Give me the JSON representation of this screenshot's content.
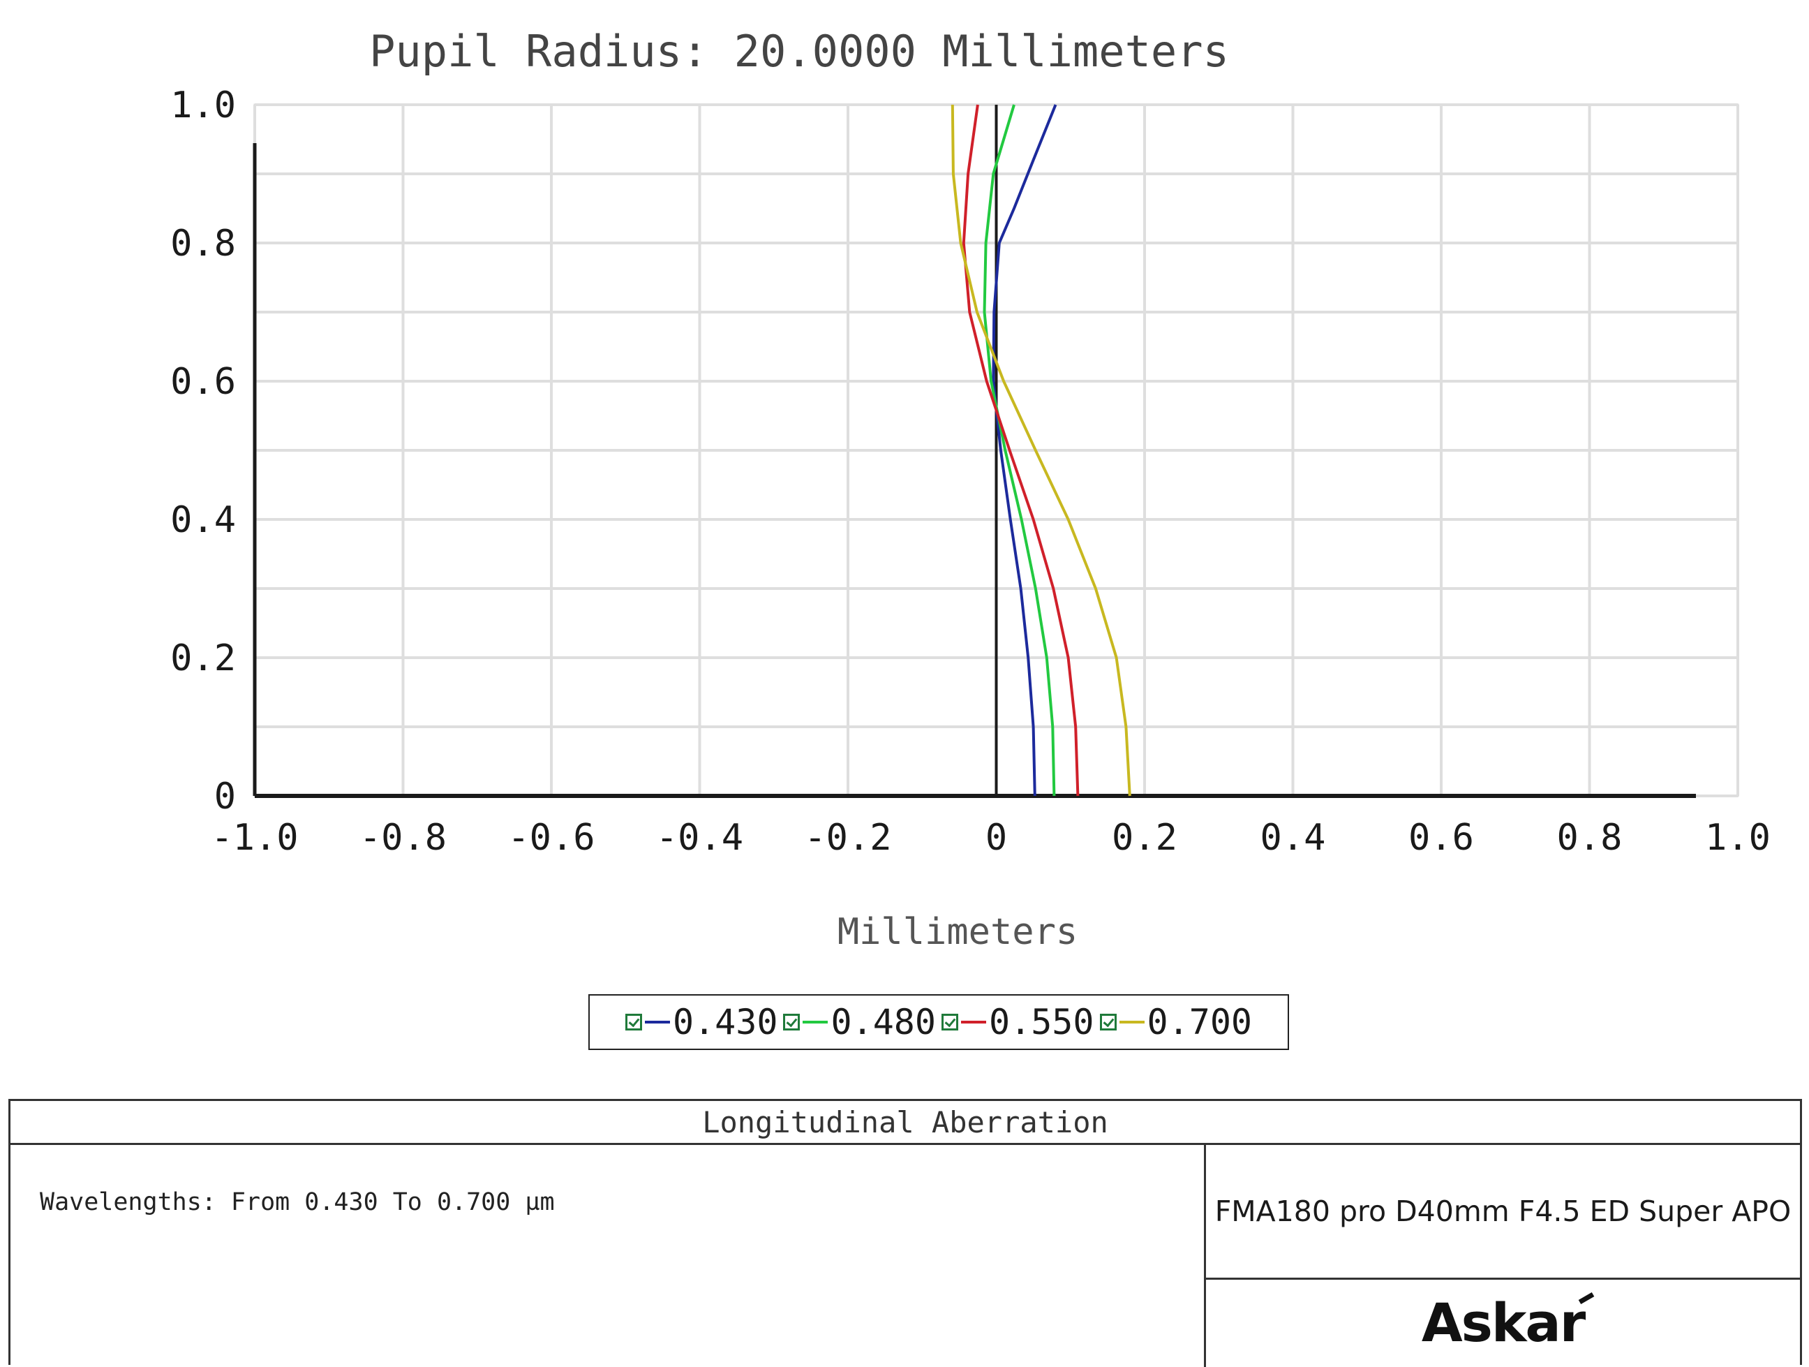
{
  "chart_data": {
    "type": "line",
    "title": "Pupil Radius: 20.0000 Millimeters",
    "xlabel": "Millimeters",
    "ylabel": "",
    "xlim": [
      -1.0,
      1.0
    ],
    "ylim": [
      0,
      1.0
    ],
    "x_ticks": [
      "-1.0",
      "-0.8",
      "-0.6",
      "-0.4",
      "-0.2",
      "0",
      "0.2",
      "0.4",
      "0.6",
      "0.8",
      "1.0"
    ],
    "y_ticks": [
      "0",
      "0.2",
      "0.4",
      "0.6",
      "0.8",
      "1.0"
    ],
    "grid": true,
    "legend_position": "bottom-center",
    "series": [
      {
        "name": "0.430",
        "color": "#1c2a9c",
        "points": [
          [
            0.052,
            0.0
          ],
          [
            0.05,
            0.1
          ],
          [
            0.043,
            0.2
          ],
          [
            0.033,
            0.3
          ],
          [
            0.019,
            0.4
          ],
          [
            0.006,
            0.5
          ],
          [
            -0.004,
            0.6
          ],
          [
            -0.003,
            0.7
          ],
          [
            0.004,
            0.8
          ],
          [
            0.024,
            0.85
          ],
          [
            0.05,
            0.92
          ],
          [
            0.08,
            1.0
          ]
        ]
      },
      {
        "name": "0.480",
        "color": "#22c940",
        "points": [
          [
            0.078,
            0.0
          ],
          [
            0.076,
            0.1
          ],
          [
            0.068,
            0.2
          ],
          [
            0.053,
            0.3
          ],
          [
            0.034,
            0.4
          ],
          [
            0.012,
            0.5
          ],
          [
            -0.007,
            0.6
          ],
          [
            -0.016,
            0.7
          ],
          [
            -0.014,
            0.8
          ],
          [
            -0.004,
            0.9
          ],
          [
            0.024,
            1.0
          ]
        ]
      },
      {
        "name": "0.550",
        "color": "#d0202a",
        "points": [
          [
            0.11,
            0.0
          ],
          [
            0.107,
            0.1
          ],
          [
            0.097,
            0.2
          ],
          [
            0.077,
            0.3
          ],
          [
            0.05,
            0.4
          ],
          [
            0.018,
            0.5
          ],
          [
            -0.013,
            0.6
          ],
          [
            -0.036,
            0.7
          ],
          [
            -0.044,
            0.8
          ],
          [
            -0.038,
            0.9
          ],
          [
            -0.025,
            1.0
          ]
        ]
      },
      {
        "name": "0.700",
        "color": "#c8b820",
        "points": [
          [
            0.18,
            0.0
          ],
          [
            0.175,
            0.1
          ],
          [
            0.162,
            0.2
          ],
          [
            0.134,
            0.3
          ],
          [
            0.097,
            0.4
          ],
          [
            0.053,
            0.5
          ],
          [
            0.01,
            0.6
          ],
          [
            -0.026,
            0.7
          ],
          [
            -0.048,
            0.8
          ],
          [
            -0.058,
            0.9
          ],
          [
            -0.059,
            1.0
          ]
        ]
      }
    ]
  },
  "legend": {
    "items": [
      {
        "label": "0.430",
        "color": "#1c2a9c"
      },
      {
        "label": "0.480",
        "color": "#22c940"
      },
      {
        "label": "0.550",
        "color": "#d0202a"
      },
      {
        "label": "0.700",
        "color": "#c8b820"
      }
    ]
  },
  "info": {
    "section_title": "Longitudinal Aberration",
    "wavelengths_note": "Wavelengths: From 0.430 To 0.700 µm",
    "product": "FMA180 pro D40mm F4.5 ED Super APO",
    "logo_text": "Askar"
  }
}
